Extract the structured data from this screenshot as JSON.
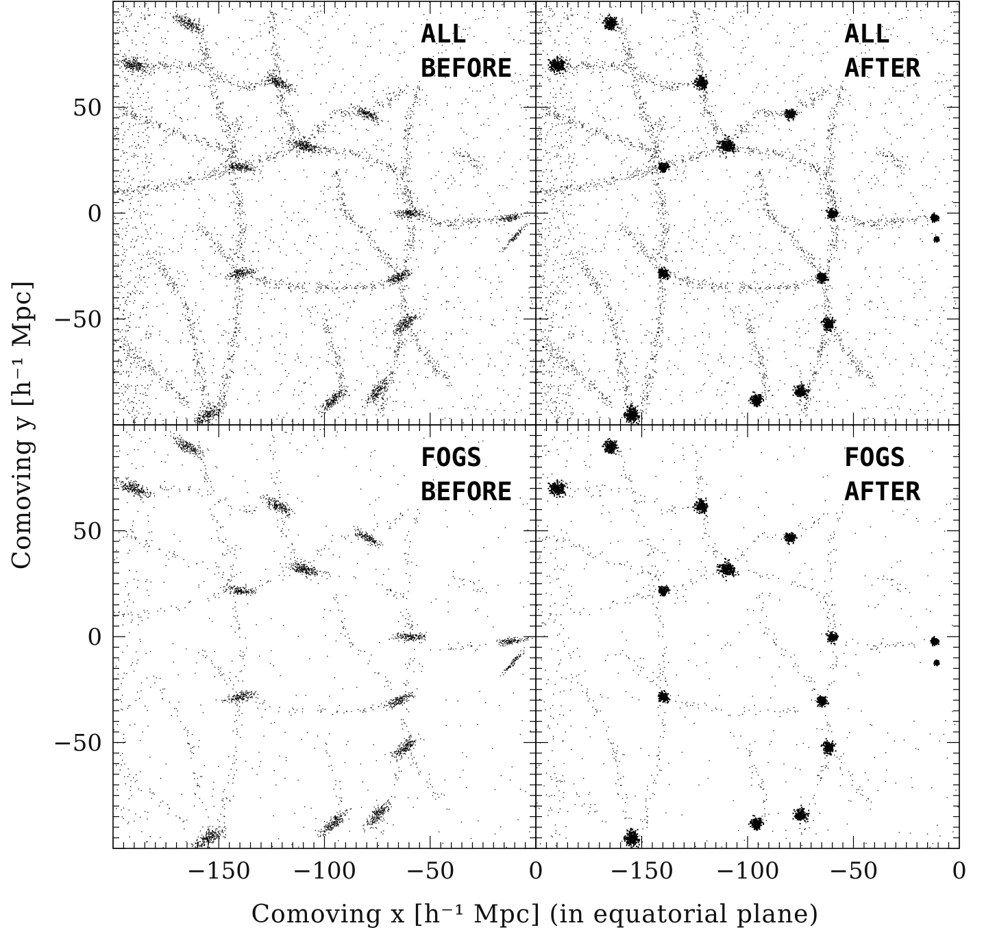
{
  "chart_data": {
    "type": "scatter",
    "xlabel": "Comoving x [h⁻¹ Mpc] (in equatorial plane)",
    "ylabel": "Comoving y [h⁻¹ Mpc]",
    "xlim": [
      -200,
      0
    ],
    "ylim": [
      -100,
      100
    ],
    "x_ticks": [
      -150,
      -100,
      -50,
      0
    ],
    "y_ticks": [
      -50,
      0,
      50
    ],
    "panels": [
      {
        "id": "all-before",
        "label_line1": "ALL",
        "label_line2": "BEFORE"
      },
      {
        "id": "all-after",
        "label_line1": "ALL",
        "label_line2": "AFTER"
      },
      {
        "id": "fogs-before",
        "label_line1": "FOGS",
        "label_line2": "BEFORE"
      },
      {
        "id": "fogs-after",
        "label_line1": "FOGS",
        "label_line2": "AFTER"
      }
    ],
    "structures": {
      "clusters": [
        {
          "x": -155,
          "y": -95,
          "r": 6
        },
        {
          "x": -140,
          "y": -28,
          "r": 4
        },
        {
          "x": -122,
          "y": 62,
          "r": 5
        },
        {
          "x": -110,
          "y": 32,
          "r": 6
        },
        {
          "x": -96,
          "y": -88,
          "r": 5
        },
        {
          "x": -75,
          "y": -84,
          "r": 5
        },
        {
          "x": -62,
          "y": -52,
          "r": 5
        },
        {
          "x": -60,
          "y": 0,
          "r": 4
        },
        {
          "x": -12,
          "y": -2,
          "r": 3
        },
        {
          "x": -11,
          "y": -12,
          "r": 2
        },
        {
          "x": -190,
          "y": 70,
          "r": 6
        },
        {
          "x": -165,
          "y": 90,
          "r": 5
        },
        {
          "x": -140,
          "y": 22,
          "r": 4
        },
        {
          "x": -80,
          "y": 47,
          "r": 4
        },
        {
          "x": -65,
          "y": -30,
          "r": 4
        }
      ],
      "filaments": [
        [
          -150,
          -95,
          -142,
          -55,
          -140,
          -28,
          -140,
          5,
          -145,
          25,
          -140,
          45
        ],
        [
          -140,
          -28,
          -115,
          -35,
          -80,
          -35,
          -64,
          -30
        ],
        [
          -64,
          -30,
          -62,
          -52,
          -70,
          -80,
          -75,
          -95
        ],
        [
          -64,
          -30,
          -58,
          -10,
          -60,
          0,
          -45,
          -5,
          -12,
          -2
        ],
        [
          -60,
          0,
          -62,
          20,
          -60,
          45,
          -55,
          60
        ],
        [
          -110,
          32,
          -85,
          28,
          -65,
          20,
          -58,
          3
        ],
        [
          -110,
          32,
          -120,
          50,
          -122,
          62,
          -125,
          95
        ],
        [
          -110,
          32,
          -140,
          22,
          -175,
          13,
          -200,
          10
        ],
        [
          -110,
          32,
          -95,
          48,
          -80,
          47,
          -60,
          60
        ],
        [
          -160,
          -5,
          -140,
          -28
        ],
        [
          -180,
          -20,
          -165,
          -45,
          -155,
          -95
        ],
        [
          -200,
          50,
          -175,
          40,
          -145,
          30
        ],
        [
          -190,
          70,
          -160,
          70,
          -140,
          60,
          -122,
          62
        ],
        [
          -160,
          90,
          -150,
          50,
          -140,
          22
        ],
        [
          -100,
          -50,
          -90,
          -85,
          -96,
          -88
        ],
        [
          -62,
          -52,
          -50,
          -70,
          -40,
          -80
        ],
        [
          -40,
          30,
          -30,
          25,
          -25,
          20
        ],
        [
          -95,
          20,
          -90,
          0,
          -80,
          -10,
          -64,
          -30
        ],
        [
          -200,
          -60,
          -180,
          -75,
          -165,
          -90
        ]
      ]
    }
  }
}
